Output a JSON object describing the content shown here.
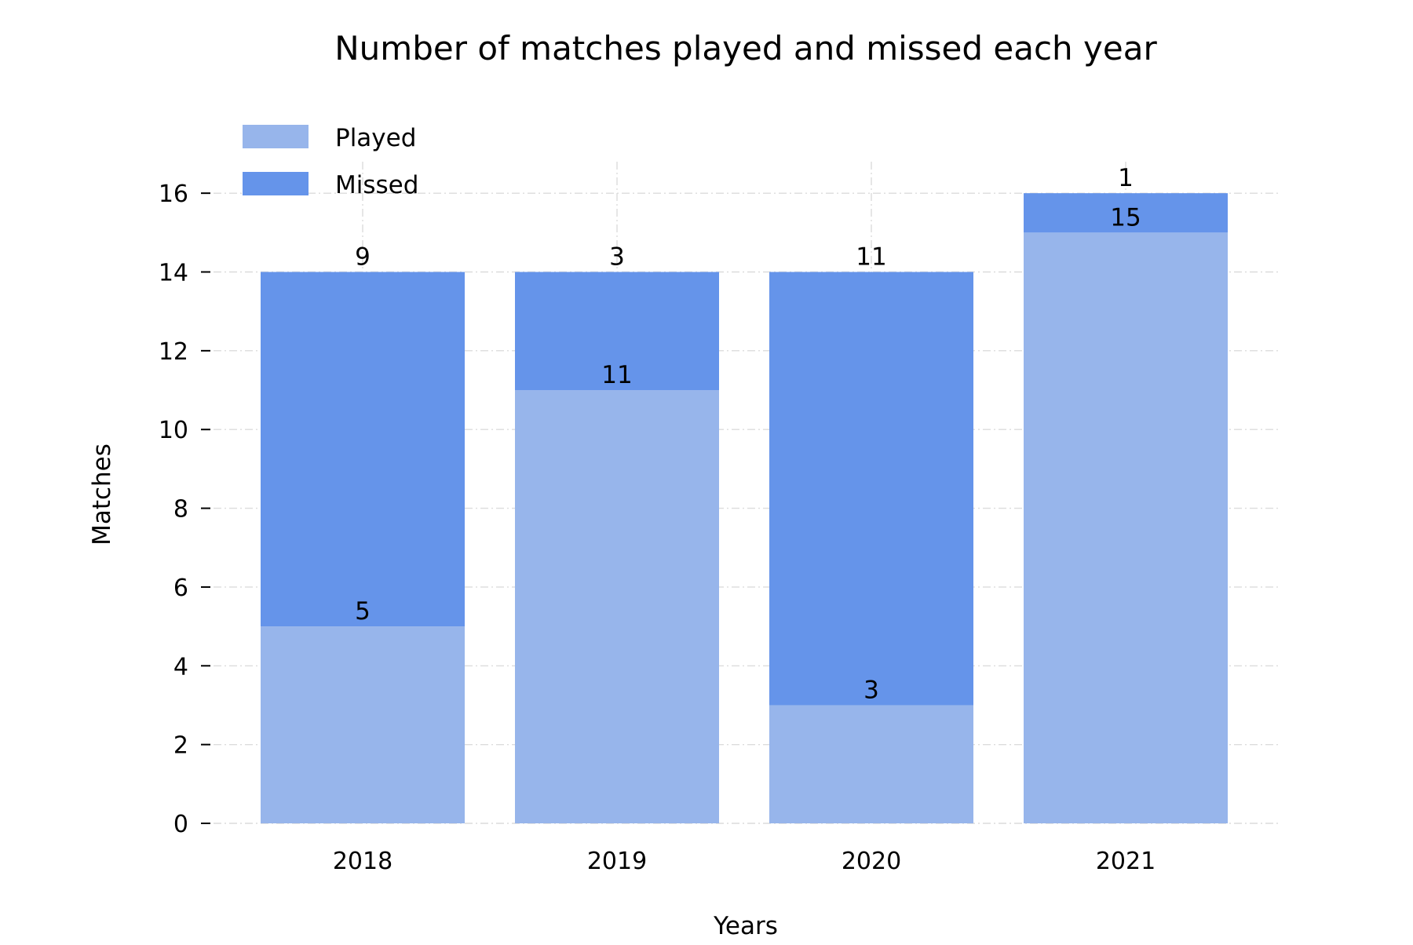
{
  "chart_data": {
    "type": "bar",
    "stacked": true,
    "title": "Number of matches played and missed each year",
    "xlabel": "Years",
    "ylabel": "Matches",
    "categories": [
      "2018",
      "2019",
      "2020",
      "2021"
    ],
    "series": [
      {
        "name": "Played",
        "values": [
          5,
          11,
          3,
          15
        ],
        "color": "#97b5eb"
      },
      {
        "name": "Missed",
        "values": [
          9,
          3,
          11,
          1
        ],
        "color": "#6594ea"
      }
    ],
    "ylim": [
      0,
      16.8
    ],
    "yticks": [
      0,
      2,
      4,
      6,
      8,
      10,
      12,
      14,
      16
    ],
    "grid": true,
    "legend_position": "top-left"
  }
}
